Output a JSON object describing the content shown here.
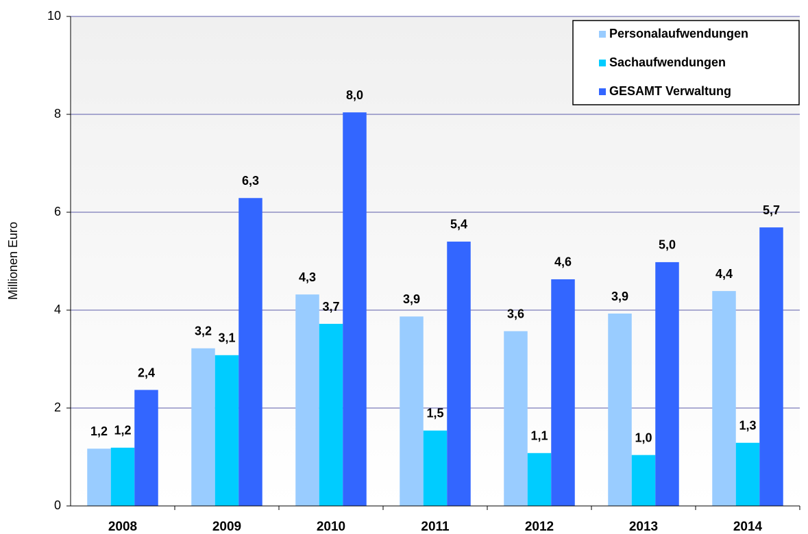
{
  "chart_data": {
    "type": "bar",
    "y_label": "Millionen Euro",
    "categories": [
      "2008",
      "2009",
      "2010",
      "2011",
      "2012",
      "2013",
      "2014"
    ],
    "series": [
      {
        "name": "Personalaufwendungen",
        "color": "#99ccff",
        "values": [
          1.17,
          3.22,
          4.32,
          3.87,
          3.57,
          3.93,
          4.39
        ],
        "value_labels": [
          "1,2",
          "3,2",
          "4,3",
          "3,9",
          "3,6",
          "3,9",
          "4,4"
        ]
      },
      {
        "name": "Sachaufwendungen",
        "color": "#00ccff",
        "values": [
          1.19,
          3.08,
          3.72,
          1.54,
          1.08,
          1.04,
          1.29
        ],
        "value_labels": [
          "1,2",
          "3,1",
          "3,7",
          "1,5",
          "1,1",
          "1,0",
          "1,3"
        ]
      },
      {
        "name": "GESAMT Verwaltung",
        "color": "#3366ff",
        "values": [
          2.37,
          6.29,
          8.04,
          5.4,
          4.63,
          4.98,
          5.69
        ],
        "value_labels": [
          "2,4",
          "6,3",
          "8,0",
          "5,4",
          "4,6",
          "5,0",
          "5,7"
        ]
      }
    ],
    "ylim": [
      0,
      10
    ],
    "yticks": [
      0,
      2,
      4,
      6,
      8,
      10
    ],
    "grid": true,
    "legend": "top-right"
  }
}
